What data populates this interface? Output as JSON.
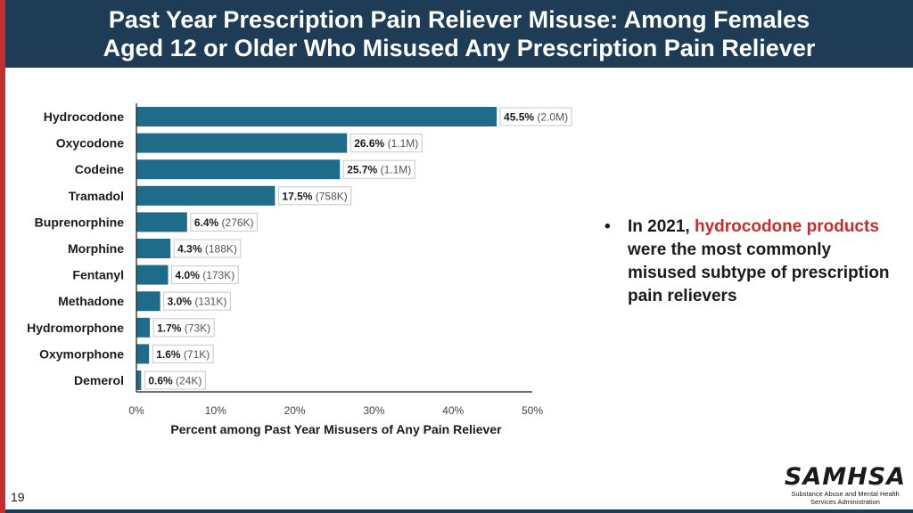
{
  "header": {
    "title_line1": "Past Year Prescription Pain Reliever Misuse: Among Females",
    "title_line2": "Aged 12 or Older Who Misused Any Prescription Pain Reliever"
  },
  "bullet": {
    "prefix": "In 2021, ",
    "highlight": "hydrocodone products",
    "suffix": " were the most commonly misused subtype of prescription pain relievers",
    "highlight_color": "#c62d2d"
  },
  "slide_number": "19",
  "logo": {
    "mark": "SAMHSA",
    "tagline_line1": "Substance Abuse and Mental Health",
    "tagline_line2": "Services Administration"
  },
  "chart_data": {
    "type": "bar",
    "orientation": "horizontal",
    "categories": [
      "Hydrocodone",
      "Oxycodone",
      "Codeine",
      "Tramadol",
      "Buprenorphine",
      "Morphine",
      "Fentanyl",
      "Methadone",
      "Hydromorphone",
      "Oxymorphone",
      "Demerol"
    ],
    "values": [
      45.5,
      26.6,
      25.7,
      17.5,
      6.4,
      4.3,
      4.0,
      3.0,
      1.7,
      1.6,
      0.6
    ],
    "value_labels": [
      "45.5%",
      "26.6%",
      "25.7%",
      "17.5%",
      "6.4%",
      "4.3%",
      "4.0%",
      "3.0%",
      "1.7%",
      "1.6%",
      "0.6%"
    ],
    "count_labels": [
      "(2.0M)",
      "(1.1M)",
      "(1.1M)",
      "(758K)",
      "(276K)",
      "(188K)",
      "(173K)",
      "(131K)",
      "(73K)",
      "(71K)",
      "(24K)"
    ],
    "xlim": [
      0,
      50
    ],
    "xticks": [
      0,
      10,
      20,
      30,
      40,
      50
    ],
    "xtick_labels": [
      "0%",
      "10%",
      "20%",
      "30%",
      "40%",
      "50%"
    ],
    "xlabel": "Percent among Past Year Misusers of Any Pain Reliever",
    "bar_color": "#1f6b8a",
    "grid": false
  }
}
